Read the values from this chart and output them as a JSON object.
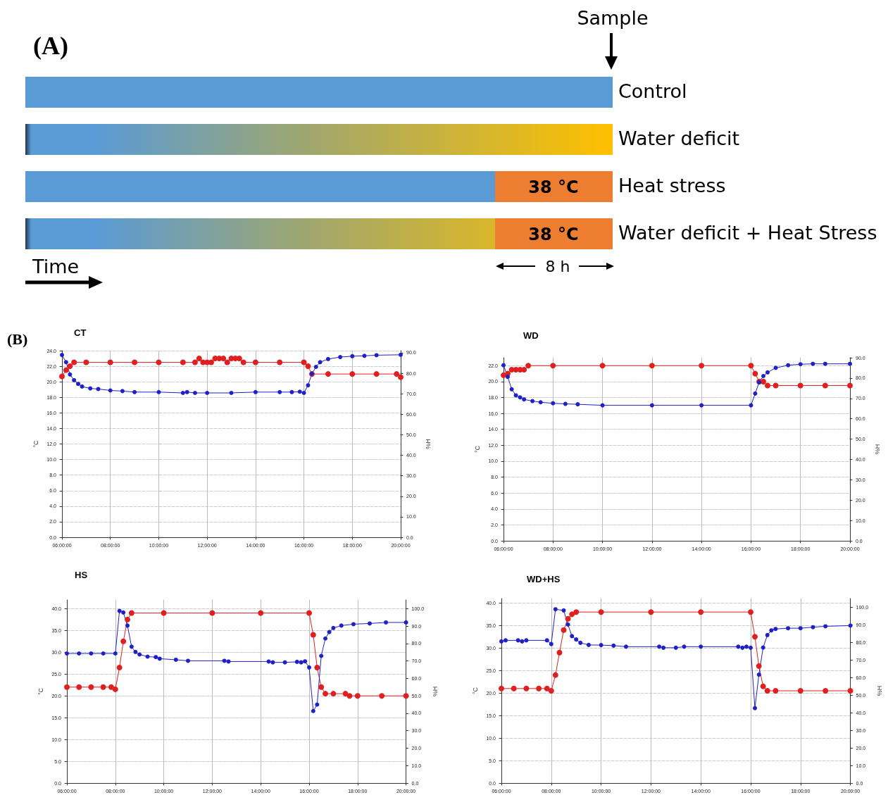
{
  "chart_data": [
    {
      "type": "other",
      "title": "(A)",
      "annotations": [
        "Sample",
        "Control",
        "Water deficit",
        "Heat stress",
        "Water deficit + Heat Stress",
        "38 °C",
        "38 °C",
        "Time",
        "8 h"
      ]
    },
    {
      "type": "line",
      "title": "CT",
      "annotations": [
        "(B)"
      ],
      "ylabel": "°C",
      "y2label": "%H",
      "grid": true,
      "marker": "circle",
      "line_style": "solid",
      "xlim": [
        6,
        20
      ],
      "xticks": [
        {
          "value": 6,
          "label": "06:00:00"
        },
        {
          "value": 8,
          "label": "08:00:00"
        },
        {
          "value": 10,
          "label": "10:00:00"
        },
        {
          "value": 12,
          "label": "12:00:00"
        },
        {
          "value": 14,
          "label": "14:00:00"
        },
        {
          "value": 16,
          "label": "16:00:00"
        },
        {
          "value": 18,
          "label": "18:00:00"
        },
        {
          "value": 20,
          "label": "20:00:00"
        }
      ],
      "ylim": [
        0,
        24
      ],
      "yticks": [
        {
          "value": 0,
          "label": "0.0"
        },
        {
          "value": 2,
          "label": "2.0"
        },
        {
          "value": 4,
          "label": "4.0"
        },
        {
          "value": 6,
          "label": "6.0"
        },
        {
          "value": 8,
          "label": "8.0"
        },
        {
          "value": 10,
          "label": "10.0"
        },
        {
          "value": 12,
          "label": "12.0"
        },
        {
          "value": 14,
          "label": "14.0"
        },
        {
          "value": 16,
          "label": "16.0"
        },
        {
          "value": 18,
          "label": "18.0"
        },
        {
          "value": 20,
          "label": "20.0"
        },
        {
          "value": 22,
          "label": "22.0"
        },
        {
          "value": 24,
          "label": "24.0"
        }
      ],
      "y2lim": [
        0,
        91
      ],
      "y2ticks": [
        {
          "value": 0,
          "label": "0.0"
        },
        {
          "value": 10,
          "label": "10.0"
        },
        {
          "value": 20,
          "label": "20.0"
        },
        {
          "value": 30,
          "label": "30.0"
        },
        {
          "value": 40,
          "label": "40.0"
        },
        {
          "value": 50,
          "label": "50.0"
        },
        {
          "value": 60,
          "label": "60.0"
        },
        {
          "value": 70,
          "label": "70.0"
        },
        {
          "value": 80,
          "label": "80.0"
        },
        {
          "value": 90,
          "label": "90.0"
        }
      ],
      "series": [
        {
          "type": "line",
          "color": "#e02020",
          "x": [
            6,
            6.17,
            6.33,
            6.5,
            7,
            8,
            9,
            10,
            11,
            11.5,
            11.67,
            11.83,
            12,
            12.17,
            12.33,
            12.5,
            12.67,
            12.83,
            13,
            13.17,
            13.33,
            13.5,
            14,
            15,
            16,
            16.17,
            16.33,
            17,
            18,
            19,
            19.83,
            20
          ],
          "values": [
            20.7,
            21.5,
            22,
            22.5,
            22.5,
            22.5,
            22.5,
            22.5,
            22.5,
            22.5,
            23,
            22.5,
            22.5,
            22.5,
            23,
            23,
            23,
            22.5,
            23,
            23,
            23,
            22.5,
            22.5,
            22.5,
            22.5,
            22,
            21,
            21,
            21,
            21,
            21,
            20.6
          ]
        },
        {
          "type": "line",
          "color": "#2020c8",
          "axis": "y2",
          "x": [
            6,
            6.17,
            6.33,
            6.5,
            6.67,
            6.83,
            7.17,
            7.5,
            8,
            8.5,
            9,
            10,
            11,
            11.17,
            11.5,
            12,
            13,
            14,
            15,
            15.5,
            15.83,
            16,
            16.17,
            16.33,
            16.5,
            16.67,
            17,
            17.5,
            18,
            18.5,
            19,
            20
          ],
          "values": [
            88.9,
            85.4,
            79.4,
            76.6,
            74.8,
            73.5,
            72.6,
            72.3,
            71.6,
            71.3,
            70.8,
            70.8,
            70.4,
            70.8,
            70.4,
            70.4,
            70.4,
            70.8,
            70.8,
            70.8,
            71,
            70.4,
            74.1,
            79.8,
            83.1,
            85.4,
            86.9,
            87.9,
            88.3,
            88.5,
            88.8,
            89
          ]
        }
      ]
    },
    {
      "type": "line",
      "title": "WD",
      "ylabel": "°C",
      "y2label": "%H",
      "grid": true,
      "marker": "circle",
      "line_style": "solid",
      "xlim": [
        6,
        20
      ],
      "xticks": [
        {
          "value": 6,
          "label": "06:00:00"
        },
        {
          "value": 8,
          "label": "08:00:00"
        },
        {
          "value": 10,
          "label": "10:00:00"
        },
        {
          "value": 12,
          "label": "12:00:00"
        },
        {
          "value": 14,
          "label": "14:00:00"
        },
        {
          "value": 16,
          "label": "16:00:00"
        },
        {
          "value": 18,
          "label": "18:00:00"
        },
        {
          "value": 20,
          "label": "20:00:00"
        }
      ],
      "ylim": [
        0,
        23
      ],
      "yticks": [
        {
          "value": 0,
          "label": "0.0"
        },
        {
          "value": 2,
          "label": "2.0"
        },
        {
          "value": 4,
          "label": "4.0"
        },
        {
          "value": 6,
          "label": "6.0"
        },
        {
          "value": 8,
          "label": "8.0"
        },
        {
          "value": 10,
          "label": "10.0"
        },
        {
          "value": 12,
          "label": "12.0"
        },
        {
          "value": 14,
          "label": "14.0"
        },
        {
          "value": 16,
          "label": "16.0"
        },
        {
          "value": 18,
          "label": "18.0"
        },
        {
          "value": 20,
          "label": "20.0"
        },
        {
          "value": 22,
          "label": "22.0"
        }
      ],
      "y2lim": [
        0,
        90
      ],
      "y2ticks": [
        {
          "value": 0,
          "label": "0.0"
        },
        {
          "value": 10,
          "label": "10.0"
        },
        {
          "value": 20,
          "label": "20.0"
        },
        {
          "value": 30,
          "label": "30.0"
        },
        {
          "value": 40,
          "label": "40.0"
        },
        {
          "value": 50,
          "label": "50.0"
        },
        {
          "value": 60,
          "label": "60.0"
        },
        {
          "value": 70,
          "label": "70.0"
        },
        {
          "value": 80,
          "label": "80.0"
        },
        {
          "value": 90,
          "label": "90.0"
        }
      ],
      "series": [
        {
          "type": "line",
          "color": "#e02020",
          "x": [
            6,
            6.17,
            6.33,
            6.5,
            6.67,
            6.83,
            7,
            8,
            10,
            12,
            14,
            16,
            16.17,
            16.33,
            16.5,
            16.67,
            17,
            18,
            19,
            20
          ],
          "values": [
            20.8,
            21,
            21.5,
            21.5,
            21.5,
            21.5,
            22,
            22,
            22,
            22,
            22,
            22,
            21,
            20,
            20,
            19.5,
            19.5,
            19.5,
            19.5,
            19.5
          ]
        },
        {
          "type": "line",
          "color": "#2020c8",
          "axis": "y2",
          "x": [
            6,
            6.17,
            6.33,
            6.5,
            6.67,
            6.83,
            7.17,
            7.5,
            8,
            8.5,
            9,
            10,
            12,
            14,
            16,
            16.17,
            16.33,
            16.5,
            16.67,
            17,
            17.5,
            18,
            18.5,
            19,
            20
          ],
          "values": [
            86.3,
            80.6,
            74.5,
            71.5,
            70.5,
            69.5,
            68.7,
            68.1,
            67.6,
            67.3,
            67.1,
            66.6,
            66.6,
            66.6,
            66.6,
            72.4,
            77.9,
            81,
            82.8,
            85,
            86.3,
            86.8,
            87,
            87,
            87
          ]
        }
      ]
    },
    {
      "type": "line",
      "title": "HS",
      "ylabel": "°C",
      "y2label": "%H",
      "grid": true,
      "marker": "circle",
      "line_style": "solid",
      "xlim": [
        6,
        20
      ],
      "xticks": [
        {
          "value": 6,
          "label": "06:00:00"
        },
        {
          "value": 8,
          "label": "08:00:00"
        },
        {
          "value": 10,
          "label": "10:00:00"
        },
        {
          "value": 12,
          "label": "12:00:00"
        },
        {
          "value": 14,
          "label": "14:00:00"
        },
        {
          "value": 16,
          "label": "16:00:00"
        },
        {
          "value": 18,
          "label": "18:00:00"
        },
        {
          "value": 20,
          "label": "20:00:00"
        }
      ],
      "ylim": [
        0,
        42
      ],
      "yticks": [
        {
          "value": 0,
          "label": "0.0"
        },
        {
          "value": 5,
          "label": "5.0"
        },
        {
          "value": 10,
          "label": "10.0"
        },
        {
          "value": 15,
          "label": "15.0"
        },
        {
          "value": 20,
          "label": "20.0"
        },
        {
          "value": 25,
          "label": "25.0"
        },
        {
          "value": 30,
          "label": "30.0"
        },
        {
          "value": 35,
          "label": "35.0"
        },
        {
          "value": 40,
          "label": "40.0"
        }
      ],
      "y2lim": [
        0,
        105
      ],
      "y2ticks": [
        {
          "value": 0,
          "label": "0.0"
        },
        {
          "value": 10,
          "label": "10.0"
        },
        {
          "value": 20,
          "label": "20.0"
        },
        {
          "value": 30,
          "label": "30.0"
        },
        {
          "value": 40,
          "label": "40.0"
        },
        {
          "value": 50,
          "label": "50.0"
        },
        {
          "value": 60,
          "label": "60.0"
        },
        {
          "value": 70,
          "label": "70.0"
        },
        {
          "value": 80,
          "label": "80.0"
        },
        {
          "value": 90,
          "label": "90.0"
        },
        {
          "value": 100,
          "label": "100.0"
        }
      ],
      "series": [
        {
          "type": "line",
          "color": "#e02020",
          "x": [
            6,
            6.5,
            7,
            7.5,
            7.83,
            8,
            8.17,
            8.33,
            8.5,
            8.67,
            10,
            12,
            14,
            16,
            16.17,
            16.33,
            16.5,
            16.67,
            17,
            17.5,
            17.67,
            18,
            19,
            20
          ],
          "values": [
            22,
            22,
            22,
            22,
            22,
            21.5,
            26.5,
            32.5,
            37.5,
            39,
            39,
            39,
            39,
            39,
            34,
            26.5,
            22,
            20.5,
            20.5,
            20.5,
            20,
            20,
            20,
            20
          ]
        },
        {
          "type": "line",
          "color": "#2020c8",
          "axis": "y2",
          "x": [
            6,
            6.5,
            7,
            7.5,
            8,
            8.17,
            8.33,
            8.5,
            8.67,
            8.83,
            9,
            9.33,
            9.67,
            9.83,
            10.5,
            11,
            12.5,
            12.67,
            14.33,
            14.5,
            15,
            15.5,
            15.67,
            15.83,
            16,
            16.17,
            16.33,
            16.5,
            16.67,
            16.83,
            17,
            17.33,
            17.83,
            18.5,
            19.17,
            20
          ],
          "values": [
            74.3,
            74.3,
            74.3,
            74.3,
            74.3,
            98.7,
            97.8,
            90.3,
            78.2,
            75.2,
            73.7,
            72.5,
            72.2,
            71.3,
            70.7,
            70.1,
            70.1,
            69.7,
            69.7,
            69.2,
            69.2,
            69.5,
            69.2,
            69.8,
            66.3,
            41.3,
            45,
            72.9,
            82.9,
            86.6,
            88.9,
            90.3,
            91.1,
            91.5,
            92.1,
            92.1
          ]
        }
      ]
    },
    {
      "type": "line",
      "title": "WD+HS",
      "ylabel": "°C",
      "y2label": "%H",
      "grid": true,
      "marker": "circle",
      "line_style": "solid",
      "xlim": [
        6,
        20
      ],
      "xticks": [
        {
          "value": 6,
          "label": "06:00:00"
        },
        {
          "value": 8,
          "label": "08:00:00"
        },
        {
          "value": 10,
          "label": "10:00:00"
        },
        {
          "value": 12,
          "label": "12:00:00"
        },
        {
          "value": 14,
          "label": "14:00:00"
        },
        {
          "value": 16,
          "label": "16:00:00"
        },
        {
          "value": 18,
          "label": "18:00:00"
        },
        {
          "value": 20,
          "label": "20:00:00"
        }
      ],
      "ylim": [
        0,
        41
      ],
      "yticks": [
        {
          "value": 0,
          "label": "0.0"
        },
        {
          "value": 5,
          "label": "5.0"
        },
        {
          "value": 10,
          "label": "10.0"
        },
        {
          "value": 15,
          "label": "15.0"
        },
        {
          "value": 20,
          "label": "20.0"
        },
        {
          "value": 25,
          "label": "25.0"
        },
        {
          "value": 30,
          "label": "30.0"
        },
        {
          "value": 35,
          "label": "35.0"
        },
        {
          "value": 40,
          "label": "40.0"
        }
      ],
      "y2lim": [
        0,
        105
      ],
      "y2ticks": [
        {
          "value": 0,
          "label": "0.0"
        },
        {
          "value": 10,
          "label": "10.0"
        },
        {
          "value": 20,
          "label": "20.0"
        },
        {
          "value": 30,
          "label": "30.0"
        },
        {
          "value": 40,
          "label": "40.0"
        },
        {
          "value": 50,
          "label": "50.0"
        },
        {
          "value": 60,
          "label": "60.0"
        },
        {
          "value": 70,
          "label": "70.0"
        },
        {
          "value": 80,
          "label": "80.0"
        },
        {
          "value": 90,
          "label": "90.0"
        },
        {
          "value": 100,
          "label": "100.0"
        }
      ],
      "series": [
        {
          "type": "line",
          "color": "#e02020",
          "x": [
            6,
            6.5,
            7,
            7.5,
            7.83,
            8,
            8.17,
            8.33,
            8.5,
            8.67,
            8.83,
            9,
            10,
            12,
            14,
            16,
            16.17,
            16.33,
            16.5,
            16.67,
            17,
            18,
            19,
            20
          ],
          "values": [
            21,
            21,
            21,
            21,
            21,
            20.5,
            24,
            29,
            34,
            36.5,
            37.5,
            38,
            38,
            38,
            38,
            38,
            32.5,
            26,
            21.5,
            20.5,
            20.5,
            20.5,
            20.5,
            20.5
          ]
        },
        {
          "type": "line",
          "color": "#2020c8",
          "axis": "y2",
          "x": [
            6,
            6.17,
            6.67,
            6.83,
            7,
            7.83,
            8,
            8.17,
            8.5,
            8.67,
            8.83,
            9,
            9.17,
            9.5,
            10,
            10.5,
            11,
            12.33,
            12.5,
            13,
            13.33,
            14,
            15.5,
            15.67,
            15.83,
            16,
            16.17,
            16.33,
            16.5,
            16.67,
            16.83,
            17,
            17.5,
            18,
            18.5,
            19,
            20
          ],
          "values": [
            80.6,
            81.2,
            81.2,
            80.6,
            81.2,
            81.2,
            79.1,
            98.9,
            98.2,
            90.2,
            83.6,
            81.7,
            79.8,
            78.6,
            78.5,
            78.2,
            77.6,
            77.6,
            77,
            77,
            77.6,
            77.6,
            77.6,
            77,
            77.6,
            77,
            42.6,
            61.7,
            77.1,
            84.2,
            86.9,
            87.7,
            88.1,
            88.1,
            88.7,
            89.2,
            89.6
          ]
        }
      ]
    }
  ]
}
